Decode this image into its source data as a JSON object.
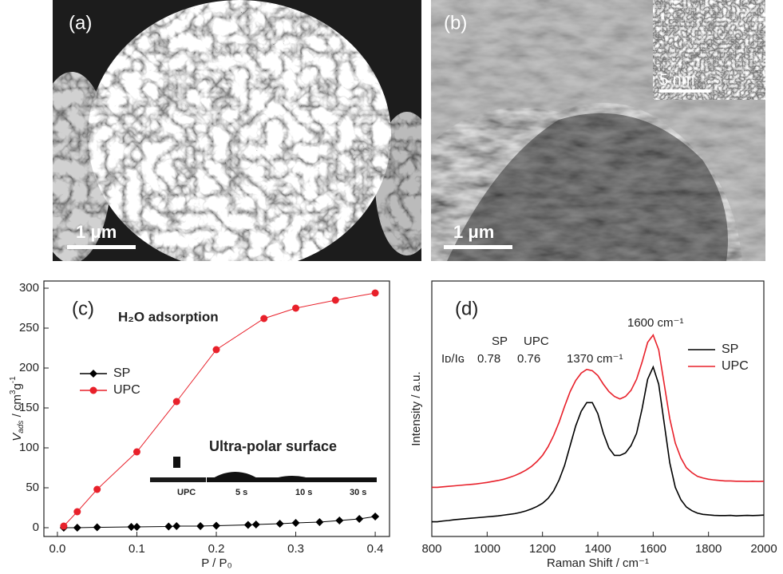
{
  "panels": [
    {
      "label": "(a)",
      "scale_bar": "1 μm"
    },
    {
      "label": "(b)",
      "scale_bar": "1 μm",
      "inset_scale_bar": "5 nm"
    }
  ],
  "chart_data": [
    {
      "type": "line",
      "panel_label": "(c)",
      "x_label": "P / P₀",
      "y_label_parts": [
        "V",
        "ads",
        " / cm",
        "3",
        "g",
        "-1"
      ],
      "annotations": [
        "H₂O adsorption",
        "Ultra-polar surface",
        "UPC",
        "5 s",
        "10 s",
        "30 s"
      ],
      "xlim": [
        -0.017,
        0.418
      ],
      "xticks": [
        {
          "value": 0,
          "label": "0.0"
        },
        0.1,
        0.2,
        0.3,
        0.4
      ],
      "ylim": [
        -11,
        309
      ],
      "yticks": [
        0,
        50,
        100,
        150,
        200,
        250,
        300
      ],
      "legend": "center left",
      "series": [
        {
          "name": "SP",
          "color": "#000000",
          "marker": "diamond",
          "x": [
            0.008,
            0.025,
            0.05,
            0.093,
            0.1,
            0.14,
            0.15,
            0.18,
            0.2,
            0.24,
            0.25,
            0.28,
            0.3,
            0.33,
            0.355,
            0.38,
            0.4
          ],
          "values": [
            0,
            0,
            0.5,
            1,
            1,
            1.5,
            2,
            2,
            2.5,
            3.5,
            4,
            5,
            6,
            7,
            9,
            11,
            14
          ]
        },
        {
          "name": "UPC",
          "color": "#e8202a",
          "marker": "circle",
          "x": [
            0.008,
            0.025,
            0.05,
            0.1,
            0.15,
            0.2,
            0.26,
            0.3,
            0.35,
            0.4
          ],
          "values": [
            2,
            20,
            48,
            95,
            158,
            223,
            262,
            275,
            285,
            294
          ]
        }
      ]
    },
    {
      "type": "line",
      "panel_label": "(d)",
      "x_label": "Raman Shift / cm⁻¹",
      "y_label": "Intensity / a.u.",
      "annotations": [
        "1600 cm⁻¹",
        "1370 cm⁻¹"
      ],
      "ratio_table": {
        "header": [
          "SP",
          "UPC"
        ],
        "row_label": "Iᴅ/Iɢ",
        "values": [
          0.78,
          0.76
        ]
      },
      "xlim": [
        800,
        2000
      ],
      "xticks": [
        800,
        1000,
        1200,
        1400,
        1600,
        1800,
        2000
      ],
      "ylim": [
        0,
        104
      ],
      "legend": "upper right",
      "x": [
        800,
        820,
        840,
        860,
        880,
        900,
        920,
        940,
        960,
        980,
        1000,
        1020,
        1040,
        1060,
        1080,
        1100,
        1120,
        1140,
        1160,
        1180,
        1200,
        1220,
        1240,
        1260,
        1280,
        1300,
        1320,
        1340,
        1360,
        1380,
        1400,
        1420,
        1440,
        1460,
        1480,
        1500,
        1520,
        1540,
        1560,
        1580,
        1600,
        1620,
        1640,
        1660,
        1680,
        1700,
        1720,
        1740,
        1760,
        1780,
        1800,
        1820,
        1840,
        1860,
        1880,
        1900,
        1920,
        1940,
        1960,
        1980,
        2000
      ],
      "series": [
        {
          "name": "SP",
          "color": "#000000",
          "values": [
            6,
            6,
            6.3,
            6.5,
            6.8,
            7,
            7.2,
            7.4,
            7.6,
            7.8,
            8,
            8.2,
            8.4,
            8.7,
            9,
            9.3,
            9.8,
            10.4,
            11.2,
            12.2,
            13.5,
            15.5,
            18.5,
            23,
            29,
            37,
            45,
            51,
            54.5,
            54.5,
            50,
            42,
            36,
            33,
            33,
            34,
            37,
            42,
            52,
            64,
            69,
            62,
            46,
            30,
            20,
            15,
            12,
            10.5,
            9.5,
            9,
            8.8,
            8.6,
            8.5,
            8.5,
            8.6,
            8.4,
            8.5,
            8.6,
            8.5,
            8.6,
            8.7
          ]
        },
        {
          "name": "UPC",
          "color": "#e8202a",
          "values": [
            20,
            20,
            20.2,
            20.4,
            20.6,
            20.8,
            21,
            21.2,
            21.4,
            21.7,
            22,
            22.4,
            22.8,
            23.3,
            24,
            24.8,
            25.8,
            27,
            28.5,
            30.5,
            33,
            36.5,
            41,
            46.5,
            53,
            59,
            63.5,
            66.5,
            68,
            67.5,
            65.5,
            62,
            59,
            57,
            56,
            57,
            59.5,
            64,
            71,
            79,
            82,
            76,
            62,
            48,
            38,
            32,
            28,
            26,
            24.5,
            23.8,
            23.3,
            23,
            22.8,
            22.6,
            22.6,
            22.5,
            22.5,
            22.4,
            22.5,
            22.4,
            22.5
          ]
        }
      ]
    }
  ]
}
